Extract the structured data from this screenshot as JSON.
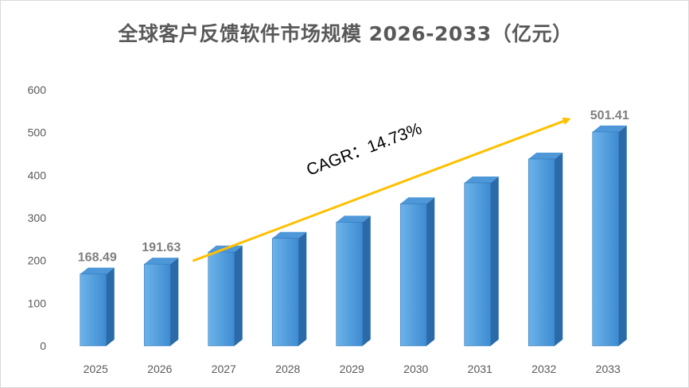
{
  "chart_data": {
    "type": "bar",
    "title": "全球客户反馈软件市场规模 2026-2033（亿元）",
    "categories": [
      "2025",
      "2026",
      "2027",
      "2028",
      "2029",
      "2030",
      "2031",
      "2032",
      "2033"
    ],
    "series": [
      {
        "values": [
          168.49,
          191.63,
          220,
          252,
          290,
          333,
          382,
          438,
          501.41
        ]
      }
    ],
    "data_labels": [
      {
        "category": "2025",
        "text": "168.49"
      },
      {
        "category": "2026",
        "text": "191.63"
      },
      {
        "category": "2033",
        "text": "501.41"
      }
    ],
    "ylim": [
      0,
      600
    ],
    "yticks": [
      0,
      100,
      200,
      300,
      400,
      500,
      600
    ],
    "grid": false,
    "legend": "none",
    "annotation": {
      "text": "CAGR：14.73%",
      "arrow_from_category": "2026",
      "arrow_to_category": "2033",
      "color": "#ffc000"
    },
    "colors": {
      "bar_front_light": "#6db3ea",
      "bar_front_dark": "#3d8bd0",
      "bar_side": "#2a6aa8",
      "bar_top": "#4e97d8",
      "axis_text": "#595959",
      "title": "#595959",
      "data_label": "#7f7f7f"
    }
  }
}
